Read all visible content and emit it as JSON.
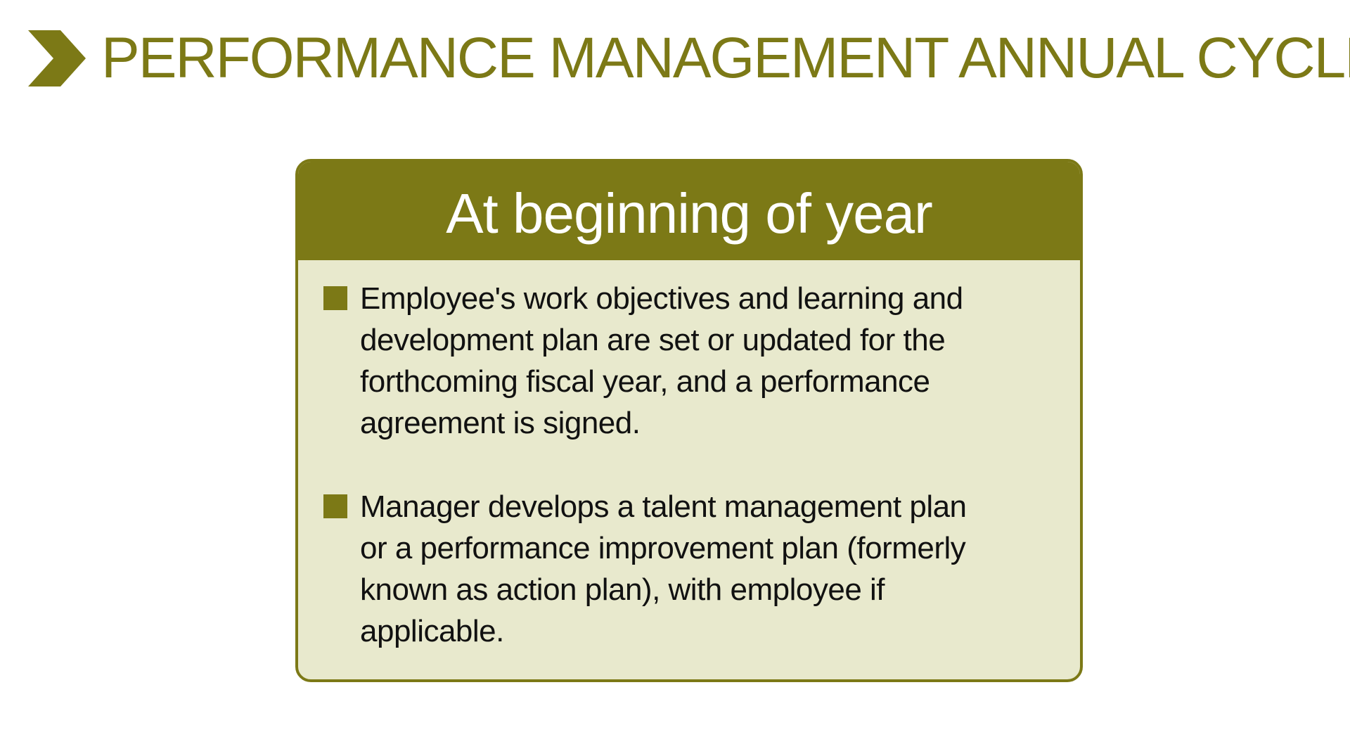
{
  "page": {
    "title": "PERFORMANCE MANAGEMENT ANNUAL CYCLE",
    "title_icon": "chevron-right-icon"
  },
  "card": {
    "title": "At beginning of year",
    "bullets": [
      {
        "text": "Employee's work objectives and learning and development plan are set or updated for the forthcoming fiscal year, and a performance agreement is signed."
      },
      {
        "text": "Manager develops a talent management plan or a performance improvement plan (formerly known as action plan), with employee if applicable."
      }
    ]
  },
  "colors": {
    "accent": "#7c7916",
    "card_background": "#e8e9cd",
    "text": "#111111",
    "background": "#ffffff"
  }
}
